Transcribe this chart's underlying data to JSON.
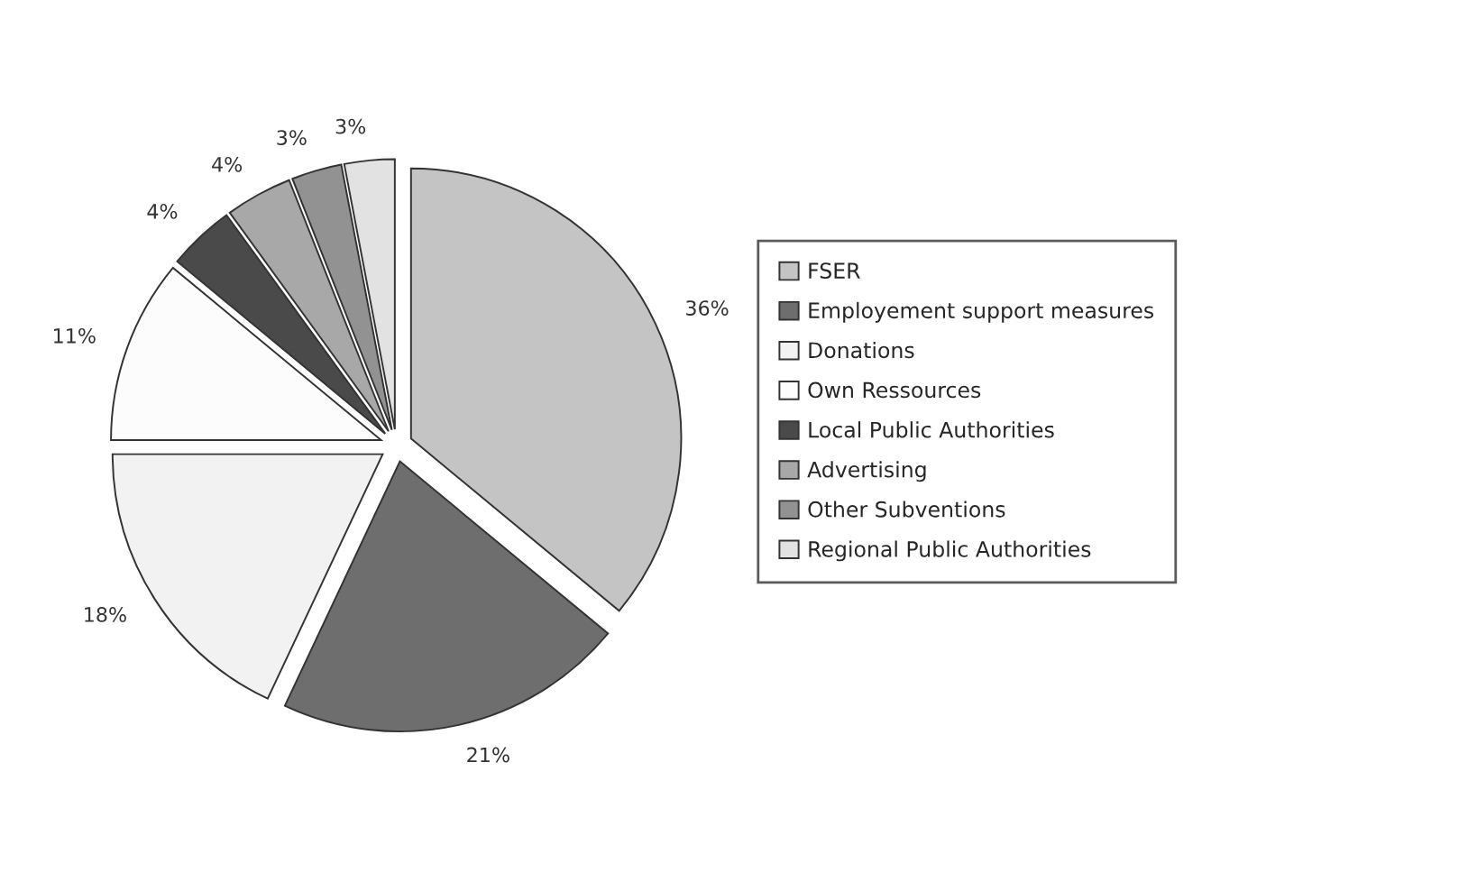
{
  "chart_data": {
    "type": "pie",
    "categories": [
      "FSER",
      "Employement support measures",
      "Donations",
      "Own Ressources",
      "Local Public Authorities",
      "Advertising",
      "Other Subventions",
      "Regional Public Authorities"
    ],
    "values": [
      36,
      21,
      18,
      11,
      4,
      4,
      3,
      3
    ],
    "value_labels": [
      "36%",
      "21%",
      "18%",
      "11%",
      "4%",
      "4%",
      "3%",
      "3%"
    ],
    "colors": [
      "#c4c4c4",
      "#6e6e6e",
      "#f2f2f2",
      "#fcfcfc",
      "#4a4a4a",
      "#a8a8a8",
      "#929292",
      "#e2e2e2"
    ],
    "legend": "right"
  }
}
